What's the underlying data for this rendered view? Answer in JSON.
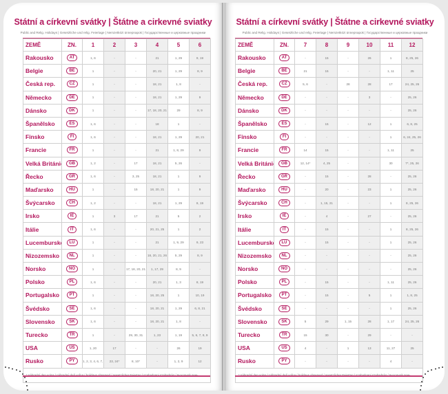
{
  "title": "Státní a církevní svátky | Štátne a cirkevné sviatky",
  "subtitle": "Public and Relig. Holidays | Gesetzliche und relig. Feiertage | Nemzetközi ünnepnapok | Государственные и церковные праздники",
  "footnote": "* náhradní den volna / náhradný deň voľna / holidays observed / gesetzlicher Feiertag / szabadnapi szabadság / выходной день",
  "accent_color": "#b3175d",
  "headers": {
    "country": "ZEMĚ",
    "code": "ZN."
  },
  "left_months": [
    "1",
    "2",
    "3",
    "4",
    "5",
    "6"
  ],
  "right_months": [
    "7",
    "8",
    "9",
    "10",
    "11",
    "12"
  ],
  "rows": [
    {
      "country": "Rakousko",
      "code": "AT",
      "left": [
        "1, 6",
        "-",
        "-",
        "21",
        "1, 29",
        "9, 19"
      ],
      "right": [
        "-",
        "15",
        "-",
        "26",
        "1",
        "8, 25, 26"
      ]
    },
    {
      "country": "Belgie",
      "code": "BE",
      "left": [
        "1",
        "-",
        "-",
        "20, 21",
        "1, 29",
        "8, 9"
      ],
      "right": [
        "21",
        "15",
        "-",
        "-",
        "1, 11",
        "25"
      ]
    },
    {
      "country": "Česká rep.",
      "code": "CZ",
      "left": [
        "1",
        "-",
        "-",
        "18, 21",
        "1, 8",
        "-"
      ],
      "right": [
        "5, 6",
        "-",
        "28",
        "28",
        "17",
        "24, 25, 26"
      ]
    },
    {
      "country": "Německo",
      "code": "DE",
      "left": [
        "1",
        "-",
        "-",
        "18, 21",
        "1, 29",
        "9"
      ],
      "right": [
        "-",
        "-",
        "-",
        "3",
        "-",
        "25, 26"
      ]
    },
    {
      "country": "Dánsko",
      "code": "DK",
      "left": [
        "1",
        "-",
        "-",
        "17, 18, 20, 21",
        "29",
        "8, 9"
      ],
      "right": [
        "-",
        "-",
        "-",
        "-",
        "-",
        "25, 26"
      ]
    },
    {
      "country": "Španělsko",
      "code": "ES",
      "left": [
        "1, 6",
        "-",
        "-",
        "18",
        "1",
        "-"
      ],
      "right": [
        "-",
        "15",
        "-",
        "12",
        "1",
        "6, 8, 25"
      ]
    },
    {
      "country": "Finsko",
      "code": "FI",
      "left": [
        "1, 6",
        "-",
        "-",
        "18, 21",
        "1, 29",
        "20, 21"
      ],
      "right": [
        "-",
        "-",
        "-",
        "-",
        "1",
        "6, 24, 25, 26"
      ]
    },
    {
      "country": "Francie",
      "code": "FR",
      "left": [
        "1",
        "-",
        "-",
        "21",
        "1, 8, 29",
        "9"
      ],
      "right": [
        "14",
        "15",
        "-",
        "-",
        "1, 11",
        "25"
      ]
    },
    {
      "country": "Velká Británie",
      "code": "GB",
      "left": [
        "1, 2",
        "-",
        "17",
        "18, 21",
        "5, 26",
        "-"
      ],
      "right": [
        "12, 14*",
        "4, 25",
        "-",
        "-",
        "30",
        "7*, 25, 26"
      ]
    },
    {
      "country": "Řecko",
      "code": "GR",
      "left": [
        "1, 6",
        "-",
        "3, 25",
        "18, 21",
        "1",
        "9"
      ],
      "right": [
        "-",
        "15",
        "-",
        "28",
        "-",
        "25, 26"
      ]
    },
    {
      "country": "Maďarsko",
      "code": "HU",
      "left": [
        "1",
        "-",
        "15",
        "18, 20, 21",
        "1",
        "9"
      ],
      "right": [
        "-",
        "20",
        "-",
        "23",
        "1",
        "25, 26"
      ]
    },
    {
      "country": "Švýcarsko",
      "code": "CH",
      "left": [
        "1, 2",
        "-",
        "-",
        "18, 21",
        "1, 29",
        "8, 19"
      ],
      "right": [
        "-",
        "1, 15, 21",
        "-",
        "-",
        "1",
        "8, 25, 26"
      ]
    },
    {
      "country": "Irsko",
      "code": "IE",
      "left": [
        "1",
        "3",
        "17",
        "21",
        "5",
        "2"
      ],
      "right": [
        "-",
        "4",
        "-",
        "27",
        "-",
        "25, 26"
      ]
    },
    {
      "country": "Itálie",
      "code": "IT",
      "left": [
        "1, 6",
        "-",
        "-",
        "20, 21, 25",
        "1",
        "2"
      ],
      "right": [
        "-",
        "15",
        "-",
        "-",
        "1",
        "8, 25, 26"
      ]
    },
    {
      "country": "Lucembursko",
      "code": "LU",
      "left": [
        "1",
        "-",
        "-",
        "21",
        "1, 9, 29",
        "9, 23"
      ],
      "right": [
        "-",
        "15",
        "-",
        "-",
        "1",
        "25, 26"
      ]
    },
    {
      "country": "Nizozemsko",
      "code": "NL",
      "left": [
        "1",
        "-",
        "-",
        "18, 20, 21, 26",
        "5, 29",
        "8, 9"
      ],
      "right": [
        "-",
        "-",
        "-",
        "-",
        "-",
        "25, 26"
      ]
    },
    {
      "country": "Norsko",
      "code": "NO",
      "left": [
        "1",
        "-",
        "17, 18, 20, 21",
        "1, 17, 29",
        "8, 9",
        "-"
      ],
      "right": [
        "-",
        "-",
        "-",
        "-",
        "-",
        "25, 26"
      ]
    },
    {
      "country": "Polsko",
      "code": "PL",
      "left": [
        "1, 6",
        "-",
        "-",
        "20, 21",
        "1, 3",
        "8, 19"
      ],
      "right": [
        "-",
        "15",
        "-",
        "-",
        "1, 11",
        "25, 26"
      ]
    },
    {
      "country": "Portugalsko",
      "code": "PT",
      "left": [
        "1",
        "-",
        "-",
        "18, 20, 25",
        "1",
        "10, 19"
      ],
      "right": [
        "-",
        "15",
        "-",
        "5",
        "1",
        "1, 8, 25"
      ]
    },
    {
      "country": "Švédsko",
      "code": "SE",
      "left": [
        "1, 6",
        "-",
        "-",
        "18, 20, 21",
        "1, 29",
        "6, 8, 21"
      ],
      "right": [
        "-",
        "-",
        "-",
        "-",
        "1",
        "25, 26"
      ]
    },
    {
      "country": "Slovensko",
      "code": "SK",
      "left": [
        "1, 6",
        "-",
        "-",
        "18, 20, 21",
        "1, 8",
        "-"
      ],
      "right": [
        "5",
        "29",
        "1, 15",
        "28",
        "1, 17",
        "24, 25, 26"
      ]
    },
    {
      "country": "Turecko",
      "code": "TR",
      "left": [
        "1",
        "-",
        "29, 30, 31",
        "1, 23",
        "1, 19",
        "5, 6, 7, 8, 9"
      ],
      "right": [
        "15",
        "30",
        "-",
        "29",
        "-",
        "-"
      ]
    },
    {
      "country": "USA",
      "code": "US",
      "left": [
        "1, 20",
        "17",
        "-",
        "-",
        "26",
        "19"
      ],
      "right": [
        "4",
        "-",
        "1",
        "13",
        "11, 27",
        "25"
      ]
    },
    {
      "country": "Rusko",
      "code": "PY",
      "left": [
        "1, 2, 3, 4, 6, 7, 8",
        "23, 24*",
        "8, 10*",
        "-",
        "1, 2, 9",
        "12"
      ],
      "right": [
        "-",
        "-",
        "-",
        "-",
        "4",
        "-"
      ]
    }
  ]
}
